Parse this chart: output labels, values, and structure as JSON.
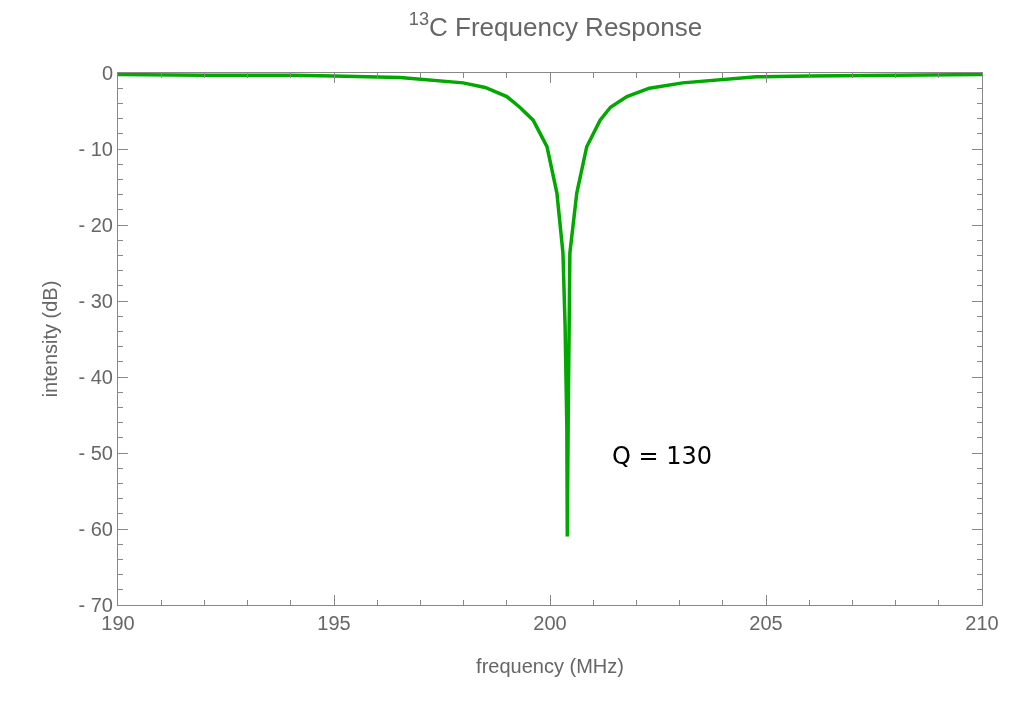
{
  "chart_data": {
    "type": "line",
    "title": "$^{13}$C Frequency Response",
    "xlabel": "frequency (MHz)",
    "ylabel": "intensity (dB)",
    "x": [
      190,
      192,
      194,
      195,
      196.53,
      197.99,
      198.5,
      199.0,
      199.3,
      199.61,
      199.93,
      200.16,
      200.3,
      200.35,
      200.39,
      200.4,
      200.42,
      200.46,
      200.62,
      200.85,
      201.16,
      201.4,
      201.78,
      202.3,
      203.07,
      204.78,
      206,
      208,
      210
    ],
    "series": [
      {
        "color": "#00a800",
        "values": [
          -0.2,
          -0.3,
          -0.3,
          -0.4,
          -0.6,
          -1.3,
          -1.9,
          -3.1,
          -4.5,
          -6.2,
          -9.7,
          -15.8,
          -23.7,
          -33.4,
          -46.6,
          -61,
          -46.6,
          -23.7,
          -15.8,
          -9.7,
          -6.2,
          -4.5,
          -3.1,
          -2.0,
          -1.3,
          -0.5,
          -0.4,
          -0.3,
          -0.2
        ]
      }
    ],
    "xlim": [
      190,
      210
    ],
    "xticks": [
      190,
      195,
      200,
      205,
      210
    ],
    "ylim": [
      -70,
      0
    ],
    "yticks": [
      {
        "value": -70,
        "label": "- 70"
      },
      {
        "value": -60,
        "label": "- 60"
      },
      {
        "value": -50,
        "label": "- 50"
      },
      {
        "value": -40,
        "label": "- 40"
      },
      {
        "value": -30,
        "label": "- 30"
      },
      {
        "value": -20,
        "label": "- 20"
      },
      {
        "value": -10,
        "label": "- 10"
      },
      0
    ],
    "annotations": [
      "Q = 130"
    ],
    "marker": "none",
    "line_style": "solid"
  }
}
